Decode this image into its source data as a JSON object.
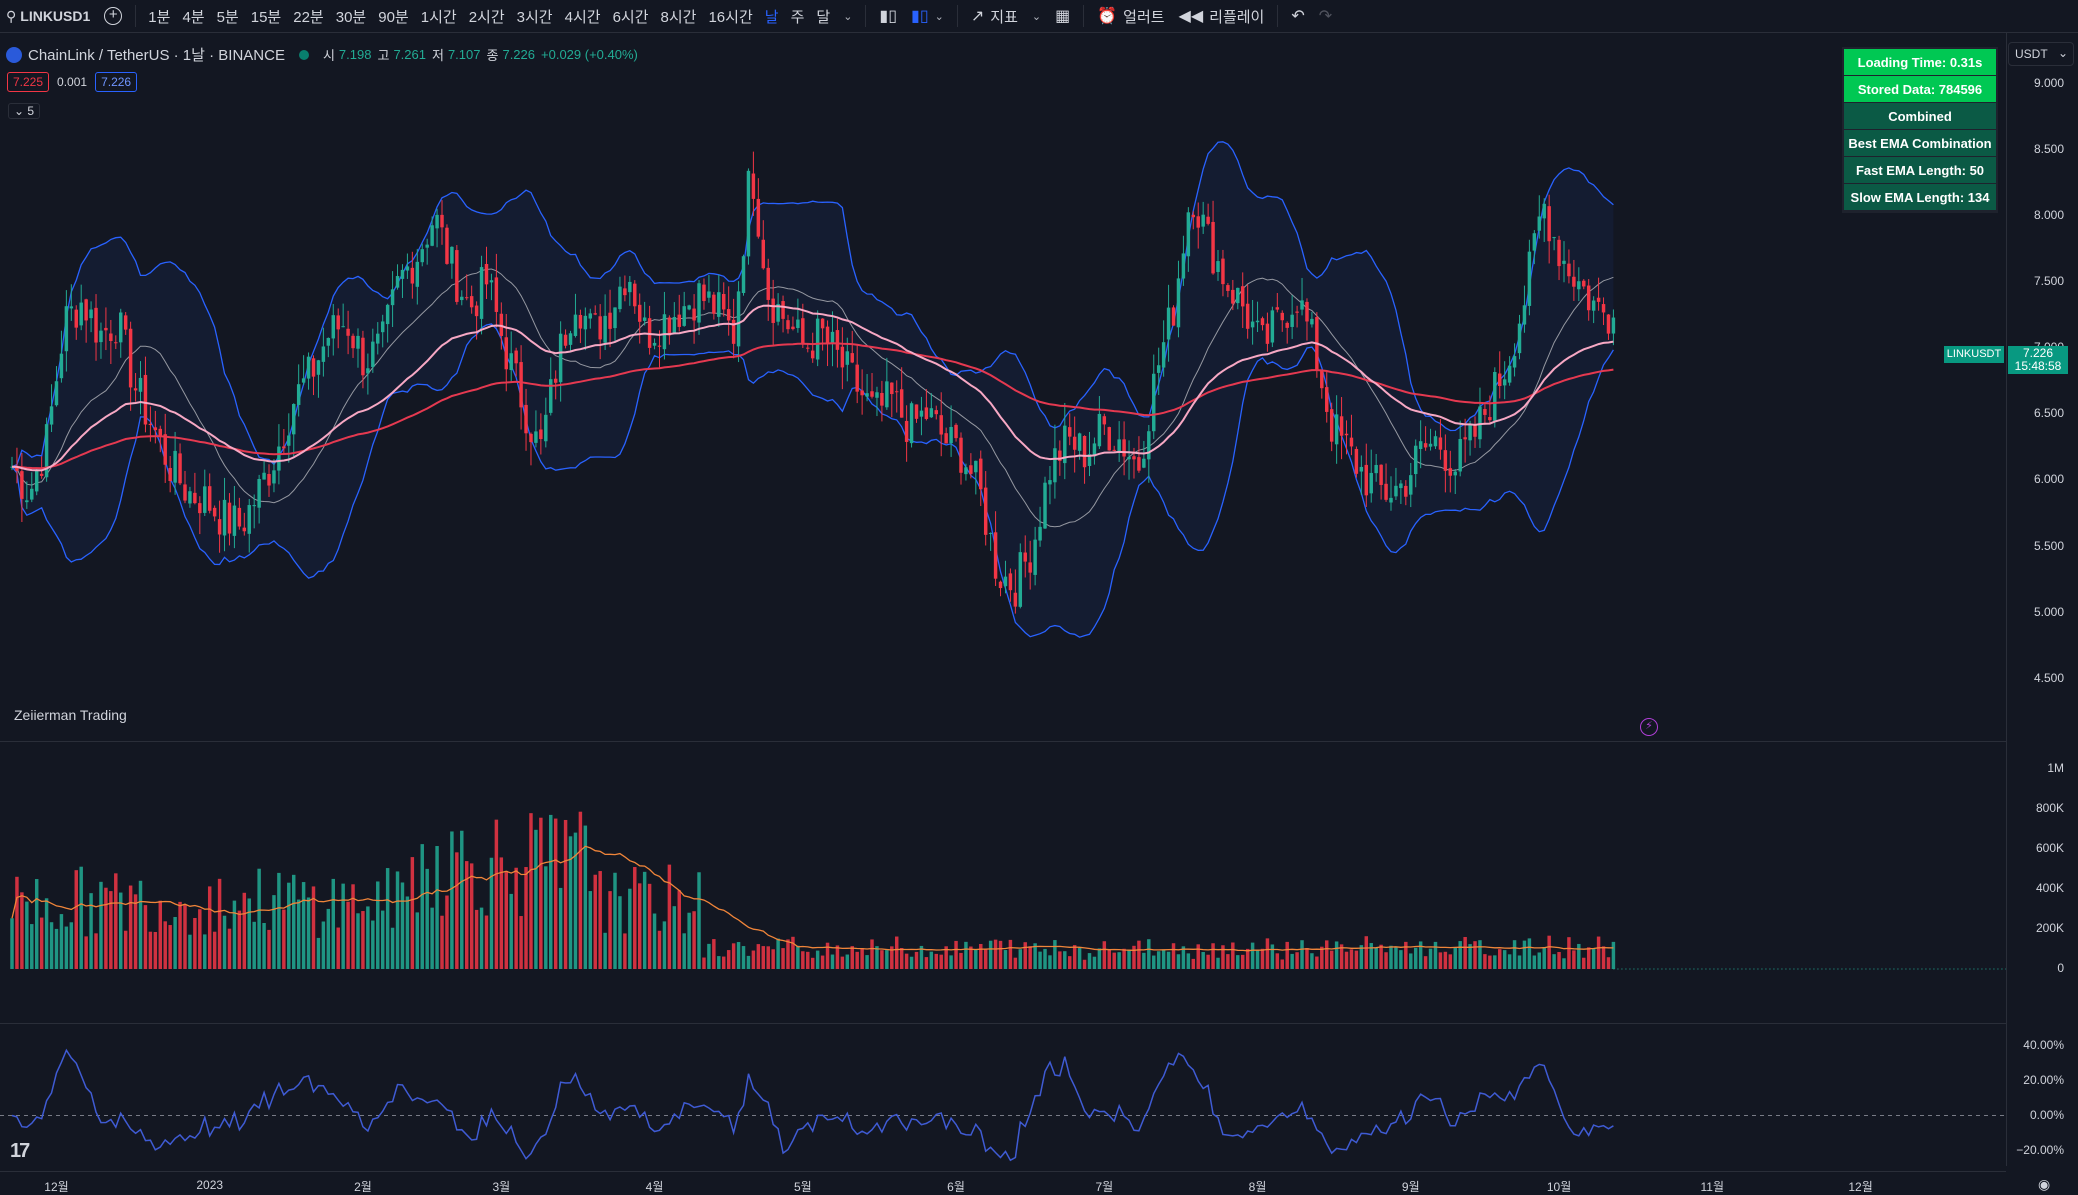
{
  "toolbar": {
    "symbol": "LINKUSD1",
    "add_icon": "plus-circle-icon",
    "timeframes": [
      "1분",
      "4분",
      "5분",
      "15분",
      "22분",
      "30분",
      "90분",
      "1시간",
      "2시간",
      "3시간",
      "4시간",
      "6시간",
      "8시간",
      "16시간",
      "날",
      "주",
      "달"
    ],
    "active_timeframe": "날",
    "indicators_label": "지표",
    "alert_label": "얼러트",
    "replay_label": "리플레이"
  },
  "legend": {
    "title": "ChainLink / TetherUS · 1날 · BINANCE",
    "open_label": "시",
    "open": "7.198",
    "high_label": "고",
    "high": "7.261",
    "low_label": "저",
    "low": "7.107",
    "close_label": "종",
    "close": "7.226",
    "change": "+0.029 (+0.40%)",
    "sell_price": "7.225",
    "spread": "0.001",
    "buy_price": "7.226",
    "collapsed_count": "5"
  },
  "info_table": {
    "rows": [
      "Loading Time: 0.31s",
      "Stored Data: 784596",
      "Combined",
      "Best EMA Combination",
      "Fast EMA Length: 50",
      "Slow EMA Length: 134"
    ],
    "row_colors": [
      "#00c853",
      "#00c853",
      "#0b5a45",
      "#0b5a45",
      "#0b5a45",
      "#0b5a45"
    ]
  },
  "price_axis": {
    "quote": "USDT",
    "ticks": [
      "9.000",
      "8.500",
      "8.000",
      "7.500",
      "7.000",
      "6.500",
      "6.000",
      "5.500",
      "5.000",
      "4.500"
    ],
    "last_symbol": "LINKUSDT",
    "last_price": "7.226",
    "countdown": "15:48:58"
  },
  "volume_axis": {
    "ticks": [
      "1M",
      "800K",
      "600K",
      "400K",
      "200K",
      "0"
    ]
  },
  "osc_axis": {
    "ticks": [
      "40.00%",
      "20.00%",
      "0.00%",
      "−20.00%"
    ]
  },
  "time_axis": {
    "labels": [
      "12월",
      "2023",
      "2월",
      "3월",
      "4월",
      "5월",
      "6월",
      "7월",
      "8월",
      "9월",
      "10월",
      "11월",
      "12월"
    ]
  },
  "watermark": "Zeiierman Trading",
  "colors": {
    "up": "#22ab94",
    "down": "#f23645",
    "bb": "#2962ff",
    "ema_slow": "#e53950",
    "ema_fast": "#f7a8c4",
    "sma": "#9598a1",
    "vol_ma": "#f0853a",
    "osc": "#3f5bd4",
    "bg": "#131722"
  },
  "chart_data": {
    "type": "candlestick",
    "x_range": [
      "2022-11-22",
      "2023-10-12"
    ],
    "ylim": [
      4.3,
      9.35
    ],
    "close_path": [
      6.1,
      5.9,
      6.3,
      7.2,
      7.35,
      7.1,
      7.2,
      6.7,
      6.4,
      6.1,
      5.9,
      5.85,
      5.7,
      5.65,
      5.9,
      6.2,
      6.6,
      6.8,
      7.1,
      7.2,
      6.9,
      7.0,
      7.5,
      7.7,
      8.0,
      7.6,
      7.3,
      7.5,
      7.0,
      6.6,
      6.2,
      6.9,
      7.4,
      7.1,
      7.3,
      7.6,
      7.1,
      7.2,
      7.3,
      7.4,
      7.3,
      7.1,
      8.4,
      7.4,
      7.2,
      7.0,
      7.1,
      6.9,
      6.7,
      6.5,
      6.6,
      6.4,
      6.5,
      6.3,
      6.2,
      5.9,
      5.3,
      5.2,
      5.5,
      6.1,
      6.3,
      6.2,
      6.4,
      6.3,
      6.1,
      6.8,
      7.3,
      8.2,
      7.8,
      7.5,
      7.3,
      7.0,
      7.2,
      7.4,
      7.0,
      6.4,
      6.2,
      6.0,
      5.9,
      5.95,
      6.2,
      6.3,
      6.1,
      6.3,
      6.6,
      6.9,
      7.4,
      8.1,
      7.7,
      7.5,
      7.3,
      7.226
    ],
    "volume_axis_max": "1M",
    "oscillator_ylim": [
      -30,
      50
    ]
  }
}
